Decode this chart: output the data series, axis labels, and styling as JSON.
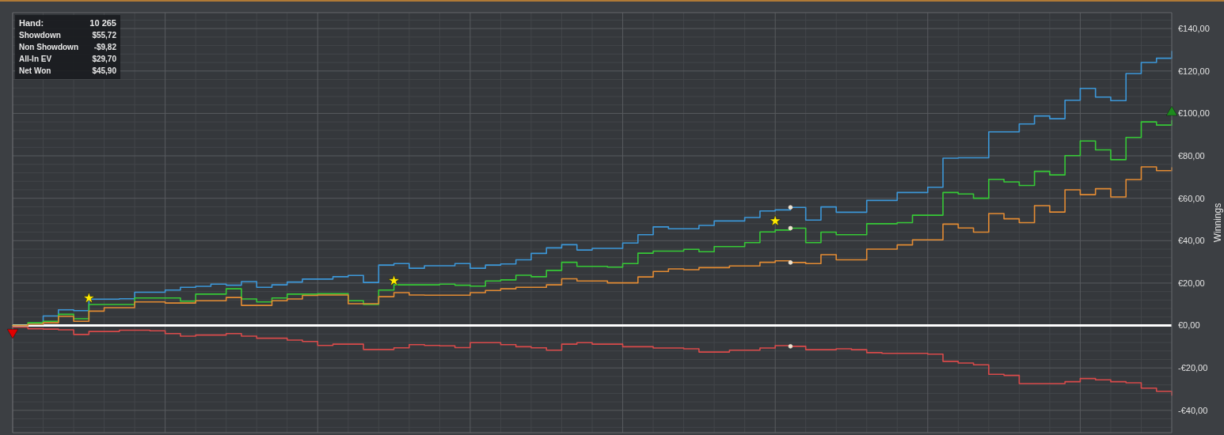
{
  "chart_data": {
    "type": "step",
    "categories": [
      null,
      null,
      null,
      null,
      null,
      null,
      null,
      null,
      null,
      null,
      null,
      null,
      null,
      null,
      null,
      null,
      null,
      null,
      null,
      null,
      null,
      null,
      null,
      null,
      null,
      null,
      null,
      null,
      null,
      null,
      null,
      null,
      null,
      null,
      null,
      null,
      null,
      null,
      null,
      null,
      null,
      null,
      null,
      null,
      null,
      null,
      null,
      null,
      null,
      null,
      null,
      null,
      null,
      null,
      null,
      null,
      null,
      null,
      null,
      null,
      null,
      null,
      null,
      null,
      null,
      null,
      null,
      null,
      null,
      null,
      null,
      null,
      null,
      null,
      null,
      null,
      null
    ],
    "series": [
      {
        "color": "#3c97d8",
        "values": [
          0,
          0.5,
          4.5,
          7.4,
          7.0,
          12.4,
          12.4,
          12.6,
          15.7,
          15.7,
          16.7,
          18.0,
          18.5,
          19.5,
          19.0,
          20.7,
          18.0,
          19.2,
          20.5,
          21.9,
          21.9,
          23.0,
          23.6,
          20.3,
          28.5,
          29.2,
          27.0,
          28.2,
          28.2,
          29.2,
          27.0,
          28.5,
          29.0,
          31.0,
          34.0,
          36.6,
          38.1,
          35.6,
          36.4,
          36.4,
          38.9,
          42.8,
          46.5,
          45.6,
          45.6,
          47.2,
          49.3,
          49.3,
          50.9,
          54.0,
          54.5,
          55.7,
          49.7,
          55.9,
          53.4,
          53.4,
          59.0,
          59.0,
          62.7,
          62.7,
          65.2,
          78.9,
          79.1,
          79.1,
          91.3,
          91.3,
          95.0,
          98.8,
          97.5,
          106.2,
          111.8,
          107.7,
          106.0,
          118.8,
          124.0,
          126.0,
          129.2
        ]
      },
      {
        "color": "#36c936",
        "values": [
          0,
          1.3,
          2.0,
          5.3,
          3.2,
          9.9,
          9.9,
          9.9,
          13.0,
          13.0,
          13.0,
          11.5,
          14.8,
          14.8,
          17.3,
          12.5,
          11.1,
          13.0,
          14.8,
          14.8,
          15.0,
          15.0,
          11.7,
          9.9,
          16.7,
          19.2,
          19.2,
          19.2,
          19.5,
          19.0,
          18.6,
          21.0,
          21.5,
          23.7,
          23.0,
          26.0,
          29.8,
          27.9,
          27.9,
          27.5,
          29.2,
          34.1,
          35.1,
          35.1,
          35.9,
          34.8,
          37.2,
          37.2,
          39.1,
          44.1,
          45.0,
          45.9,
          39.1,
          44.0,
          42.8,
          42.8,
          48.0,
          48.0,
          48.5,
          52.0,
          52.0,
          62.7,
          62.0,
          60.0,
          68.9,
          67.7,
          66.0,
          72.7,
          71.0,
          80.1,
          87.0,
          82.8,
          78.2,
          88.7,
          96.0,
          94.5,
          96.6
        ]
      },
      {
        "color": "#e38b33",
        "values": [
          0,
          0.6,
          1.3,
          4.3,
          2.0,
          6.8,
          8.4,
          8.4,
          11.1,
          11.1,
          10.6,
          10.6,
          11.7,
          11.7,
          13.2,
          9.5,
          9.5,
          11.7,
          12.5,
          14.2,
          14.4,
          14.4,
          10.3,
          10.3,
          13.6,
          15.5,
          14.4,
          14.3,
          14.3,
          14.3,
          15.5,
          16.5,
          17.3,
          18.0,
          18.0,
          19.2,
          22.0,
          21.0,
          21.0,
          20.1,
          20.1,
          22.9,
          25.5,
          26.7,
          26.3,
          27.3,
          27.3,
          28.1,
          28.1,
          29.8,
          30.5,
          29.7,
          29.2,
          33.4,
          31.0,
          31.0,
          36.0,
          36.0,
          38.0,
          40.4,
          40.4,
          47.8,
          46.0,
          44.0,
          52.8,
          50.3,
          48.5,
          56.5,
          53.5,
          64.0,
          61.7,
          64.5,
          60.6,
          68.8,
          74.8,
          73.0,
          74.4
        ]
      },
      {
        "color": "#d94a4a",
        "values": [
          -0.7,
          -1.5,
          -1.7,
          -2.0,
          -4.2,
          -2.8,
          -2.8,
          -2.2,
          -2.2,
          -2.5,
          -3.8,
          -5.0,
          -4.5,
          -4.5,
          -3.8,
          -5.0,
          -6.0,
          -6.0,
          -6.9,
          -7.5,
          -9.4,
          -8.8,
          -8.8,
          -11.3,
          -11.3,
          -10.5,
          -9.0,
          -9.4,
          -9.6,
          -10.4,
          -8.1,
          -8.1,
          -9.0,
          -10.0,
          -10.5,
          -11.6,
          -8.8,
          -8.1,
          -8.8,
          -8.8,
          -10.0,
          -10.0,
          -10.6,
          -10.6,
          -11.0,
          -12.5,
          -12.5,
          -11.6,
          -11.6,
          -10.6,
          -9.5,
          -9.8,
          -11.4,
          -11.4,
          -11.0,
          -11.4,
          -12.8,
          -13.1,
          -13.1,
          -13.1,
          -13.5,
          -16.9,
          -17.7,
          -18.5,
          -23.0,
          -23.5,
          -27.4,
          -27.4,
          -27.4,
          -26.5,
          -25.0,
          -25.6,
          -26.5,
          -27.0,
          -29.5,
          -31.0,
          -32.9
        ]
      },
      {
        "type": "scatter",
        "marker": "star",
        "color": "#ffea00",
        "values": [
          null,
          null,
          null,
          null,
          null,
          12.9,
          null,
          null,
          null,
          null,
          null,
          null,
          null,
          null,
          null,
          null,
          null,
          null,
          null,
          null,
          null,
          null,
          null,
          null,
          null,
          21.1,
          null,
          null,
          null,
          null,
          null,
          null,
          null,
          null,
          null,
          null,
          null,
          null,
          null,
          null,
          null,
          null,
          null,
          null,
          null,
          null,
          null,
          null,
          null,
          null,
          49.3,
          null,
          null,
          null,
          null,
          null,
          null,
          null,
          null,
          null,
          null,
          null,
          null,
          null,
          null,
          null,
          null,
          null,
          null,
          null,
          null,
          null,
          null,
          null,
          null,
          null,
          null
        ]
      },
      {
        "type": "scatter",
        "marker": "triangle-down",
        "color": "#e00000",
        "values": [
          -3.2,
          null,
          null,
          null,
          null,
          null,
          null,
          null,
          null,
          null,
          null,
          null,
          null,
          null,
          null,
          null,
          null,
          null,
          null,
          null,
          null,
          null,
          null,
          null,
          null,
          null,
          null,
          null,
          null,
          null,
          null,
          null,
          null,
          null,
          null,
          null,
          null,
          null,
          null,
          null,
          null,
          null,
          null,
          null,
          null,
          null,
          null,
          null,
          null,
          null,
          null,
          null,
          null,
          null,
          null,
          null,
          null,
          null,
          null,
          null,
          null,
          null,
          null,
          null,
          null,
          null,
          null,
          null,
          null,
          null,
          null,
          null,
          null,
          null,
          null,
          null,
          null
        ]
      },
      {
        "type": "scatter",
        "marker": "triangle",
        "color": "#1e8a1e",
        "values": [
          null,
          null,
          null,
          null,
          null,
          null,
          null,
          null,
          null,
          null,
          null,
          null,
          null,
          null,
          null,
          null,
          null,
          null,
          null,
          null,
          null,
          null,
          null,
          null,
          null,
          null,
          null,
          null,
          null,
          null,
          null,
          null,
          null,
          null,
          null,
          null,
          null,
          null,
          null,
          null,
          null,
          null,
          null,
          null,
          null,
          null,
          null,
          null,
          null,
          null,
          null,
          null,
          null,
          null,
          null,
          null,
          null,
          null,
          null,
          null,
          null,
          null,
          null,
          null,
          null,
          null,
          null,
          null,
          null,
          null,
          null,
          null,
          null,
          null,
          null,
          null,
          100.5
        ]
      },
      {
        "type": "scatter",
        "marker": "circle",
        "color": "#eee2cf",
        "values": [
          null,
          null,
          null,
          null,
          null,
          null,
          null,
          null,
          null,
          null,
          null,
          null,
          null,
          null,
          null,
          null,
          null,
          null,
          null,
          null,
          null,
          null,
          null,
          null,
          null,
          null,
          null,
          null,
          null,
          null,
          null,
          null,
          null,
          null,
          null,
          null,
          null,
          null,
          null,
          null,
          null,
          null,
          null,
          null,
          null,
          null,
          null,
          null,
          null,
          null,
          null,
          55.7,
          null,
          null,
          null,
          null,
          null,
          null,
          null,
          null,
          null,
          null,
          null,
          null,
          null,
          null,
          null,
          null,
          null,
          null,
          null,
          null,
          null,
          null,
          null,
          null,
          null
        ]
      },
      {
        "type": "scatter",
        "marker": "circle",
        "color": "#eee2cf",
        "values": [
          null,
          null,
          null,
          null,
          null,
          null,
          null,
          null,
          null,
          null,
          null,
          null,
          null,
          null,
          null,
          null,
          null,
          null,
          null,
          null,
          null,
          null,
          null,
          null,
          null,
          null,
          null,
          null,
          null,
          null,
          null,
          null,
          null,
          null,
          null,
          null,
          null,
          null,
          null,
          null,
          null,
          null,
          null,
          null,
          null,
          null,
          null,
          null,
          null,
          null,
          null,
          45.9,
          null,
          null,
          null,
          null,
          null,
          null,
          null,
          null,
          null,
          null,
          null,
          null,
          null,
          null,
          null,
          null,
          null,
          null,
          null,
          null,
          null,
          null,
          null,
          null,
          null
        ]
      },
      {
        "type": "scatter",
        "marker": "circle",
        "color": "#eee2cf",
        "values": [
          null,
          null,
          null,
          null,
          null,
          null,
          null,
          null,
          null,
          null,
          null,
          null,
          null,
          null,
          null,
          null,
          null,
          null,
          null,
          null,
          null,
          null,
          null,
          null,
          null,
          null,
          null,
          null,
          null,
          null,
          null,
          null,
          null,
          null,
          null,
          null,
          null,
          null,
          null,
          null,
          null,
          null,
          null,
          null,
          null,
          null,
          null,
          null,
          null,
          null,
          null,
          29.7,
          null,
          null,
          null,
          null,
          null,
          null,
          null,
          null,
          null,
          null,
          null,
          null,
          null,
          null,
          null,
          null,
          null,
          null,
          null,
          null,
          null,
          null,
          null,
          null,
          null
        ]
      },
      {
        "type": "scatter",
        "marker": "circle",
        "color": "#eee2cf",
        "values": [
          null,
          null,
          null,
          null,
          null,
          null,
          null,
          null,
          null,
          null,
          null,
          null,
          null,
          null,
          null,
          null,
          null,
          null,
          null,
          null,
          null,
          null,
          null,
          null,
          null,
          null,
          null,
          null,
          null,
          null,
          null,
          null,
          null,
          null,
          null,
          null,
          null,
          null,
          null,
          null,
          null,
          null,
          null,
          null,
          null,
          null,
          null,
          null,
          null,
          null,
          null,
          -9.8,
          null,
          null,
          null,
          null,
          null,
          null,
          null,
          null,
          null,
          null,
          null,
          null,
          null,
          null,
          null,
          null,
          null,
          null,
          null,
          null,
          null,
          null,
          null,
          null,
          null
        ]
      }
    ],
    "ylim": [
      -50.5,
      147.5
    ],
    "yticks": [
      {
        "value": -48,
        "label": null
      },
      {
        "value": -44,
        "label": null
      },
      {
        "value": -40,
        "label": "-€40,00"
      },
      {
        "value": -36,
        "label": null
      },
      {
        "value": -32,
        "label": null
      },
      {
        "value": -28,
        "label": null
      },
      {
        "value": -24,
        "label": null
      },
      {
        "value": -20,
        "label": "-€20,00"
      },
      {
        "value": -16,
        "label": null
      },
      {
        "value": -12,
        "label": null
      },
      {
        "value": -8,
        "label": null
      },
      {
        "value": -4,
        "label": null
      },
      {
        "value": 0,
        "label": "€0,00"
      },
      {
        "value": 4,
        "label": null
      },
      {
        "value": 8,
        "label": null
      },
      {
        "value": 12,
        "label": null
      },
      {
        "value": 16,
        "label": null
      },
      {
        "value": 20,
        "label": "€20,00"
      },
      {
        "value": 24,
        "label": null
      },
      {
        "value": 28,
        "label": null
      },
      {
        "value": 32,
        "label": null
      },
      {
        "value": 36,
        "label": null
      },
      {
        "value": 40,
        "label": "€40,00"
      },
      {
        "value": 44,
        "label": null
      },
      {
        "value": 48,
        "label": null
      },
      {
        "value": 52,
        "label": null
      },
      {
        "value": 56,
        "label": null
      },
      {
        "value": 60,
        "label": "€60,00"
      },
      {
        "value": 64,
        "label": null
      },
      {
        "value": 68,
        "label": null
      },
      {
        "value": 72,
        "label": null
      },
      {
        "value": 76,
        "label": null
      },
      {
        "value": 80,
        "label": "€80,00"
      },
      {
        "value": 84,
        "label": null
      },
      {
        "value": 88,
        "label": null
      },
      {
        "value": 92,
        "label": null
      },
      {
        "value": 96,
        "label": null
      },
      {
        "value": 100,
        "label": "€100,00"
      },
      {
        "value": 104,
        "label": null
      },
      {
        "value": 108,
        "label": null
      },
      {
        "value": 112,
        "label": null
      },
      {
        "value": 116,
        "label": null
      },
      {
        "value": 120,
        "label": "€120,00"
      },
      {
        "value": 124,
        "label": null
      },
      {
        "value": 128,
        "label": null
      },
      {
        "value": 132,
        "label": null
      },
      {
        "value": 136,
        "label": null
      },
      {
        "value": 140,
        "label": "€140,00"
      },
      {
        "value": 144,
        "label": null
      }
    ],
    "ylabel": "Winnings",
    "tick_labels": "y",
    "grid": true,
    "marker": "none",
    "ref_lines": [
      {
        "axis": "y",
        "value": 0,
        "color": "#ffffff"
      }
    ],
    "annotations": [
      "Hand:",
      "10 265",
      "Showdown",
      "$55,72",
      "Non Showdown",
      "-$9,82",
      "All-In EV",
      "$29,70",
      "Net Won",
      "$45,90"
    ]
  }
}
